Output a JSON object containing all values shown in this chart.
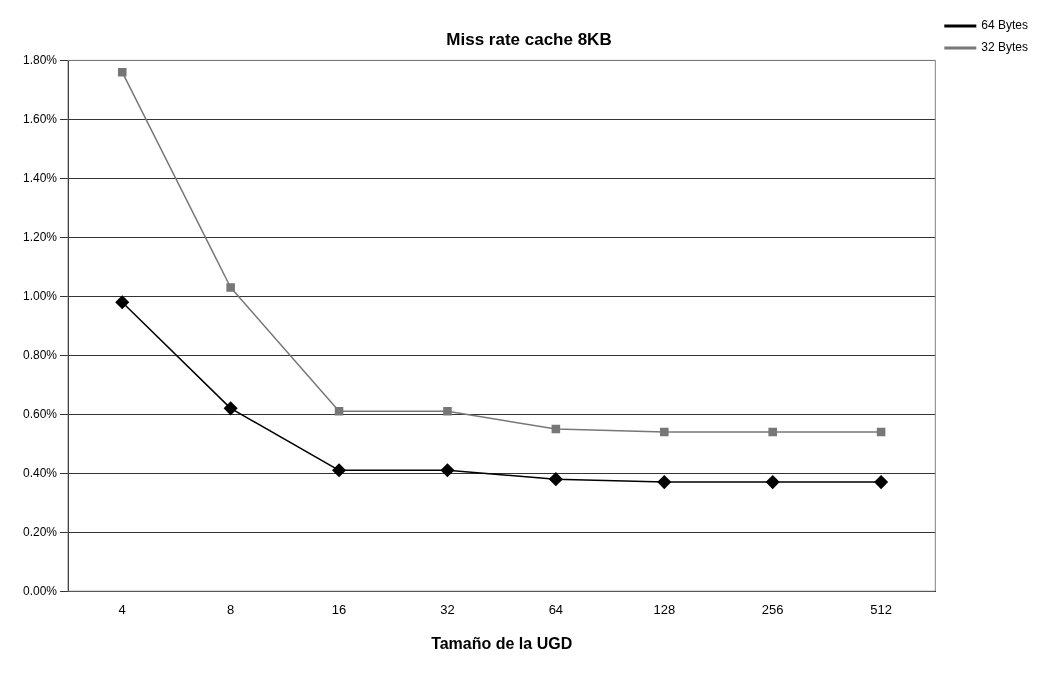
{
  "chart_data": {
    "type": "line",
    "title": "Miss rate cache 8KB",
    "xlabel": "Tamaño de la UGD",
    "categories": [
      "4",
      "8",
      "16",
      "32",
      "64",
      "128",
      "256",
      "512"
    ],
    "series": [
      {
        "name": "64 Bytes",
        "color": "#000000",
        "marker": "diamond",
        "values": [
          0.98,
          0.62,
          0.41,
          0.41,
          0.38,
          0.37,
          0.37,
          0.37
        ]
      },
      {
        "name": "32 Bytes",
        "color": "#777777",
        "marker": "square",
        "values": [
          1.76,
          1.03,
          0.61,
          0.61,
          0.55,
          0.54,
          0.54,
          0.54
        ]
      }
    ],
    "ylim": [
      0,
      1.8
    ],
    "yticks": [
      {
        "value": 0,
        "label": "0.00%"
      },
      {
        "value": 0.2,
        "label": "0.20%"
      },
      {
        "value": 0.4,
        "label": "0.40%"
      },
      {
        "value": 0.6,
        "label": "0.60%"
      },
      {
        "value": 0.8,
        "label": "0.80%"
      },
      {
        "value": 1.0,
        "label": "1.00%"
      },
      {
        "value": 1.2,
        "label": "1.20%"
      },
      {
        "value": 1.4,
        "label": "1.40%"
      },
      {
        "value": 1.6,
        "label": "1.60%"
      },
      {
        "value": 1.8,
        "label": "1.80%"
      }
    ],
    "grid": "y",
    "legend": "top right",
    "line_style": "solid"
  }
}
